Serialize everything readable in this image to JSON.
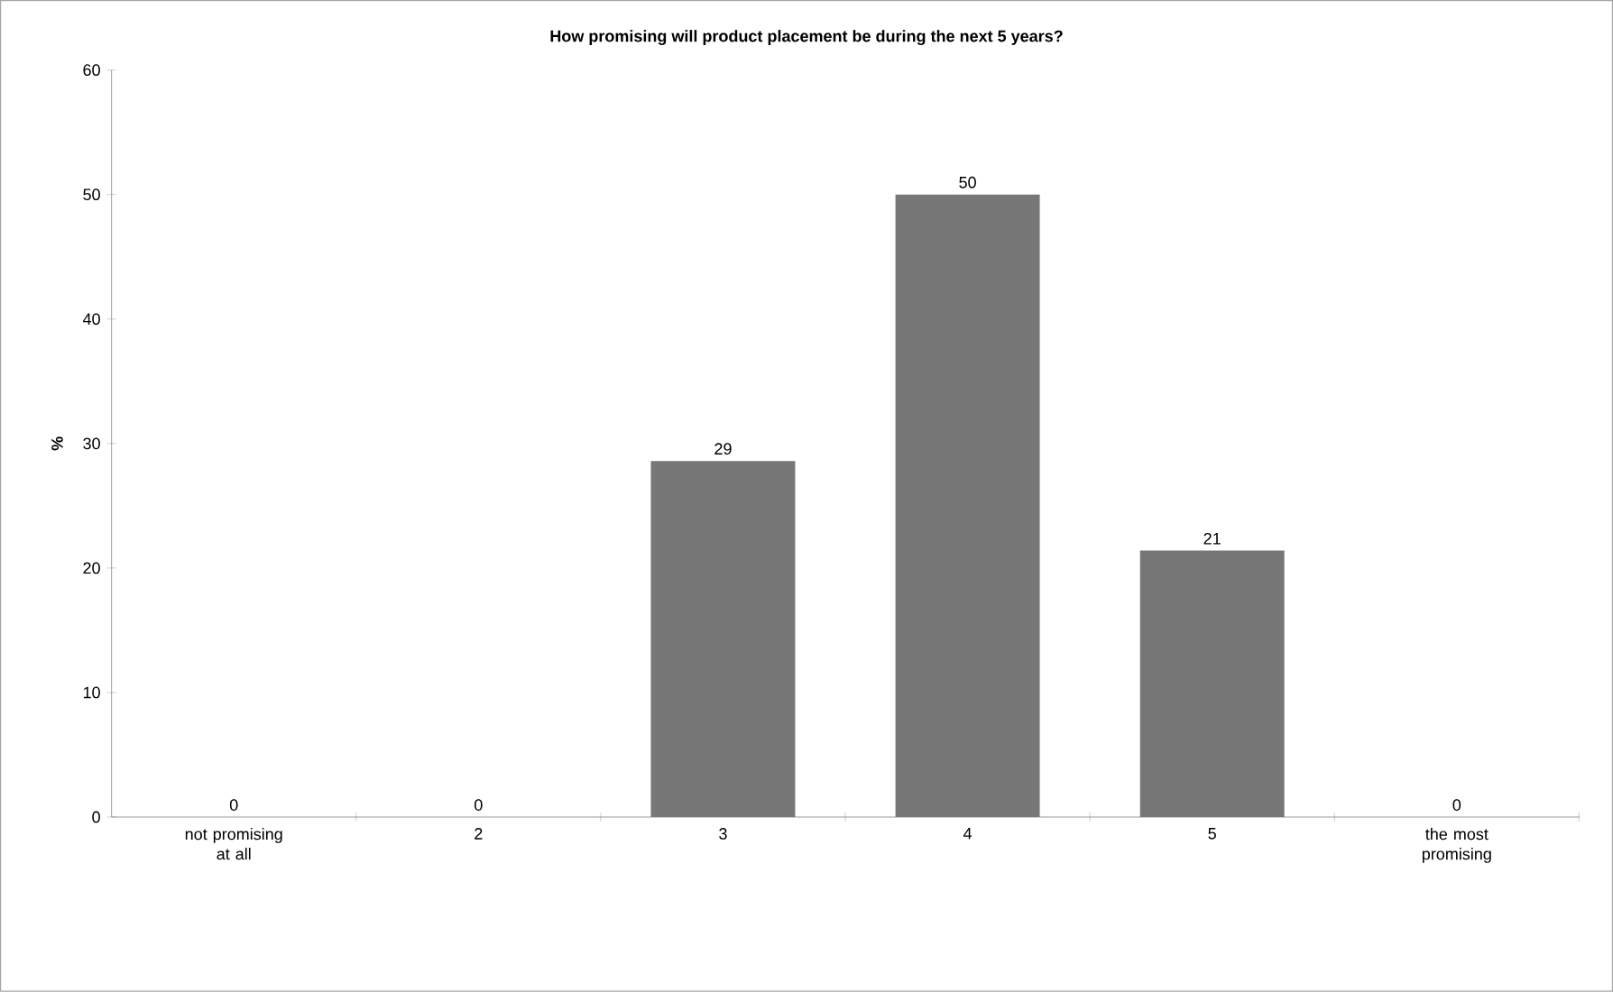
{
  "chart_data": {
    "type": "bar",
    "title": "How promising will product placement be during the next 5 years?",
    "ylabel": "%",
    "categories": [
      "not promising at all",
      "2",
      "3",
      "4",
      "5",
      "the most promising"
    ],
    "values": [
      0,
      0,
      28.6,
      50,
      21.4,
      0
    ],
    "value_labels": [
      "0",
      "0",
      "29",
      "50",
      "21",
      "0"
    ],
    "color": "#777777",
    "ylim": [
      0,
      60
    ],
    "yticks": [
      0,
      10,
      20,
      30,
      40,
      50,
      60
    ]
  }
}
